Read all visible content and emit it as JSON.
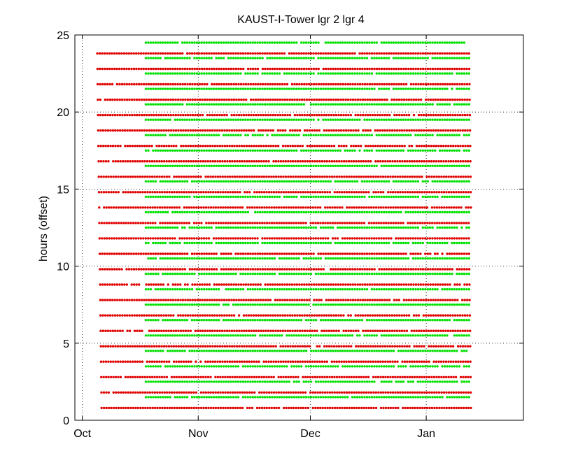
{
  "chart_data": {
    "type": "scatter",
    "title": "KAUST-I-Tower  lgr 2 lgr 4",
    "xlabel": "",
    "ylabel": "hours (offset)",
    "x_ticks": [
      "Oct",
      "Nov",
      "Dec",
      "Jan"
    ],
    "x_tick_days": [
      0,
      31,
      61,
      92
    ],
    "xlim_days": [
      -2,
      118
    ],
    "ylim": [
      0,
      25
    ],
    "y_ticks": [
      0,
      5,
      10,
      15,
      20,
      25
    ],
    "grid": true,
    "series": [
      {
        "color": "#e00000",
        "marker": "dot",
        "description_rows": "hourly offsets 0.8 to 23.8 at 1 h spacing",
        "row_offsets": [
          0.8,
          1.8,
          2.8,
          3.8,
          4.8,
          5.8,
          6.8,
          7.8,
          8.8,
          9.8,
          10.8,
          11.8,
          12.8,
          13.8,
          14.8,
          15.8,
          16.8,
          17.8,
          18.8,
          19.8,
          20.8,
          21.8,
          22.8,
          23.8
        ],
        "start_day": 4,
        "end_day": 104
      },
      {
        "color": "#00e000",
        "marker": "dot",
        "row_offsets": [
          1.5,
          2.5,
          3.5,
          4.5,
          5.5,
          6.5,
          7.5,
          8.5,
          9.5,
          10.5,
          11.5,
          12.5,
          13.5,
          14.5,
          15.5,
          16.5,
          17.5,
          18.5,
          19.5,
          20.5,
          21.5,
          22.5,
          23.5,
          24.5
        ],
        "start_day": 17,
        "end_day": 104
      }
    ]
  }
}
